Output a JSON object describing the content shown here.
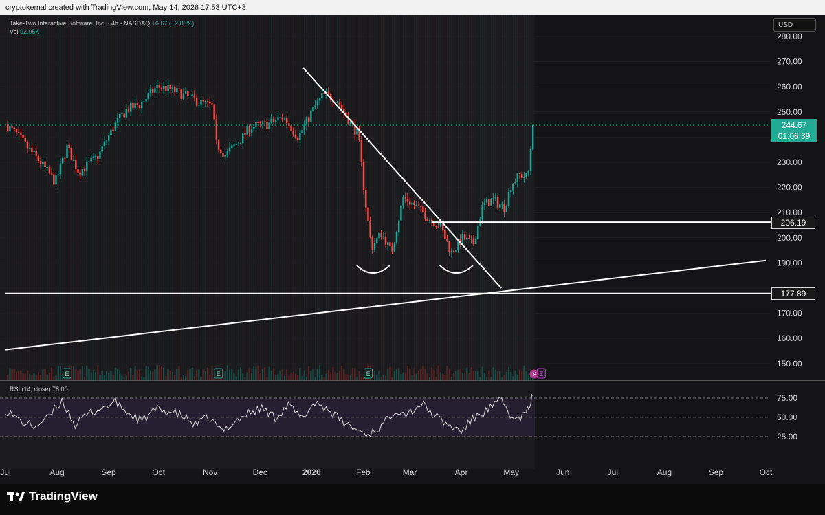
{
  "header": {
    "creator_line": "cryptokemal created with TradingView.com, May 14, 2026 17:53 UTC+3"
  },
  "legend": {
    "symbol": "Take-Two Interactive Software, Inc. · 4h · NASDAQ",
    "change": "+6.67 (+2.80%)",
    "vol_label": "Vol",
    "vol_value": "92.95K",
    "rsi_label": "RSI (14, close)",
    "rsi_value": "78.00"
  },
  "currency": "USD",
  "last_price": {
    "price": "244.67",
    "countdown": "01:06:39"
  },
  "price_axis_labels": [
    "280.00",
    "270.00",
    "260.00",
    "250.00",
    "230.00",
    "220.00",
    "210.00",
    "200.00",
    "190.00",
    "170.00",
    "160.00",
    "150.00"
  ],
  "rsi_axis_labels": [
    "75.00",
    "50.00",
    "25.00"
  ],
  "horizontal_levels": [
    {
      "label": "206.19",
      "value": 206.19
    },
    {
      "label": "177.89",
      "value": 177.89
    }
  ],
  "time_axis_labels": [
    "Jul",
    "Aug",
    "Sep",
    "Oct",
    "Nov",
    "Dec",
    "2026",
    "Feb",
    "Mar",
    "Apr",
    "May",
    "Jun",
    "Jul",
    "Aug",
    "Sep",
    "Oct"
  ],
  "event_markers": [
    "E",
    "E",
    "E",
    "E"
  ],
  "footer": {
    "brand": "TradingView"
  },
  "colors": {
    "up": "#26a69a",
    "down": "#ef5350",
    "background": "#141416",
    "rsi": "#dcdcdc",
    "last_price": "#22ab94"
  },
  "chart_data": {
    "type": "line",
    "title": "Take-Two Interactive Software, Inc. · 4h · NASDAQ",
    "ylim": [
      143,
      285
    ],
    "rsi_ylim": [
      10,
      85
    ],
    "price_path": {
      "x": [
        "2025-07-01",
        "2025-07-08",
        "2025-07-14",
        "2025-07-22",
        "2025-07-31",
        "2025-08-07",
        "2025-08-14",
        "2025-08-25",
        "2025-09-05",
        "2025-09-12",
        "2025-09-20",
        "2025-09-30",
        "2025-10-08",
        "2025-10-15",
        "2025-10-25",
        "2025-11-03",
        "2025-11-04",
        "2025-11-10",
        "2025-11-18",
        "2025-11-25",
        "2025-12-05",
        "2025-12-15",
        "2025-12-24",
        "2026-01-02",
        "2026-01-08",
        "2026-01-16",
        "2026-01-23",
        "2026-01-29",
        "2026-02-02",
        "2026-02-06",
        "2026-02-12",
        "2026-02-18",
        "2026-02-25",
        "2026-03-04",
        "2026-03-12",
        "2026-03-19",
        "2026-03-26",
        "2026-04-02",
        "2026-04-08",
        "2026-04-14",
        "2026-04-20",
        "2026-04-27",
        "2026-05-01",
        "2026-05-06",
        "2026-05-11",
        "2026-05-14"
      ],
      "y": [
        245,
        241,
        236,
        230,
        222,
        236,
        226,
        232,
        245,
        251,
        253,
        260,
        259,
        257,
        254,
        252,
        238,
        233,
        238,
        244,
        245,
        248,
        240,
        251,
        257,
        255,
        247,
        241,
        216,
        196,
        202,
        194,
        216,
        213,
        208,
        205,
        194,
        200,
        197,
        213,
        215,
        212,
        221,
        225,
        224,
        244.67
      ]
    },
    "rsi_path": {
      "x": [
        "2025-07-01",
        "2025-07-10",
        "2025-07-18",
        "2025-07-26",
        "2025-08-04",
        "2025-08-12",
        "2025-08-20",
        "2025-08-28",
        "2025-09-05",
        "2025-09-13",
        "2025-09-21",
        "2025-09-29",
        "2025-10-07",
        "2025-10-15",
        "2025-10-23",
        "2025-10-31",
        "2025-11-08",
        "2025-11-16",
        "2025-11-24",
        "2025-12-02",
        "2025-12-10",
        "2025-12-18",
        "2025-12-26",
        "2026-01-03",
        "2026-01-11",
        "2026-01-19",
        "2026-01-27",
        "2026-02-04",
        "2026-02-12",
        "2026-02-20",
        "2026-02-28",
        "2026-03-08",
        "2026-03-16",
        "2026-03-24",
        "2026-04-01",
        "2026-04-09",
        "2026-04-17",
        "2026-04-25",
        "2026-05-03",
        "2026-05-10",
        "2026-05-14"
      ],
      "y": [
        60,
        45,
        38,
        48,
        72,
        40,
        55,
        62,
        70,
        55,
        45,
        60,
        58,
        52,
        40,
        50,
        32,
        45,
        55,
        62,
        50,
        66,
        48,
        70,
        60,
        45,
        35,
        28,
        38,
        60,
        55,
        68,
        52,
        40,
        32,
        50,
        60,
        72,
        45,
        55,
        78
      ]
    },
    "trendlines": [
      {
        "from": [
          "2025-12-27",
          267.5
        ],
        "to": [
          "2026-04-25",
          180
        ]
      },
      {
        "from": [
          "2025-07-01",
          155.5
        ],
        "to": [
          "2026-10-01",
          191
        ]
      }
    ],
    "horizontal_lines": [
      {
        "value": 206.19,
        "from": "2026-03-14"
      },
      {
        "value": 177.89,
        "from": "2025-07-01"
      }
    ],
    "bottoms": [
      {
        "center": "2026-02-07",
        "value": 189
      },
      {
        "center": "2026-03-29",
        "value": 189
      }
    ],
    "volume_note": "volume bars shown; individual values not readable"
  }
}
